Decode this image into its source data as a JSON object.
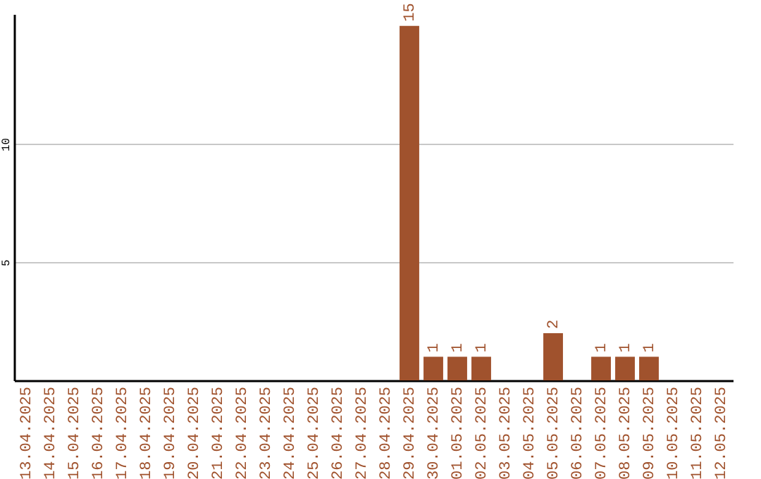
{
  "chart_data": {
    "type": "bar",
    "categories": [
      "13.04.2025",
      "14.04.2025",
      "15.04.2025",
      "16.04.2025",
      "17.04.2025",
      "18.04.2025",
      "19.04.2025",
      "20.04.2025",
      "21.04.2025",
      "22.04.2025",
      "23.04.2025",
      "24.04.2025",
      "25.04.2025",
      "26.04.2025",
      "27.04.2025",
      "28.04.2025",
      "29.04.2025",
      "30.04.2025",
      "01.05.2025",
      "02.05.2025",
      "03.05.2025",
      "04.05.2025",
      "05.05.2025",
      "06.05.2025",
      "07.05.2025",
      "08.05.2025",
      "09.05.2025",
      "10.05.2025",
      "11.05.2025",
      "12.05.2025"
    ],
    "values": [
      0,
      0,
      0,
      0,
      0,
      0,
      0,
      0,
      0,
      0,
      0,
      0,
      0,
      0,
      0,
      0,
      15,
      1,
      1,
      1,
      0,
      0,
      2,
      0,
      1,
      1,
      1,
      0,
      0,
      0
    ],
    "value_labels": [
      null,
      null,
      null,
      null,
      null,
      null,
      null,
      null,
      null,
      null,
      null,
      null,
      null,
      null,
      null,
      null,
      "15",
      "1",
      "1",
      "1",
      null,
      null,
      "2",
      null,
      "1",
      "1",
      "1",
      null,
      null,
      null
    ],
    "color": "#a0522d",
    "ylim": [
      0,
      15.5
    ],
    "yticks": [
      5,
      10
    ],
    "grid": "y"
  }
}
